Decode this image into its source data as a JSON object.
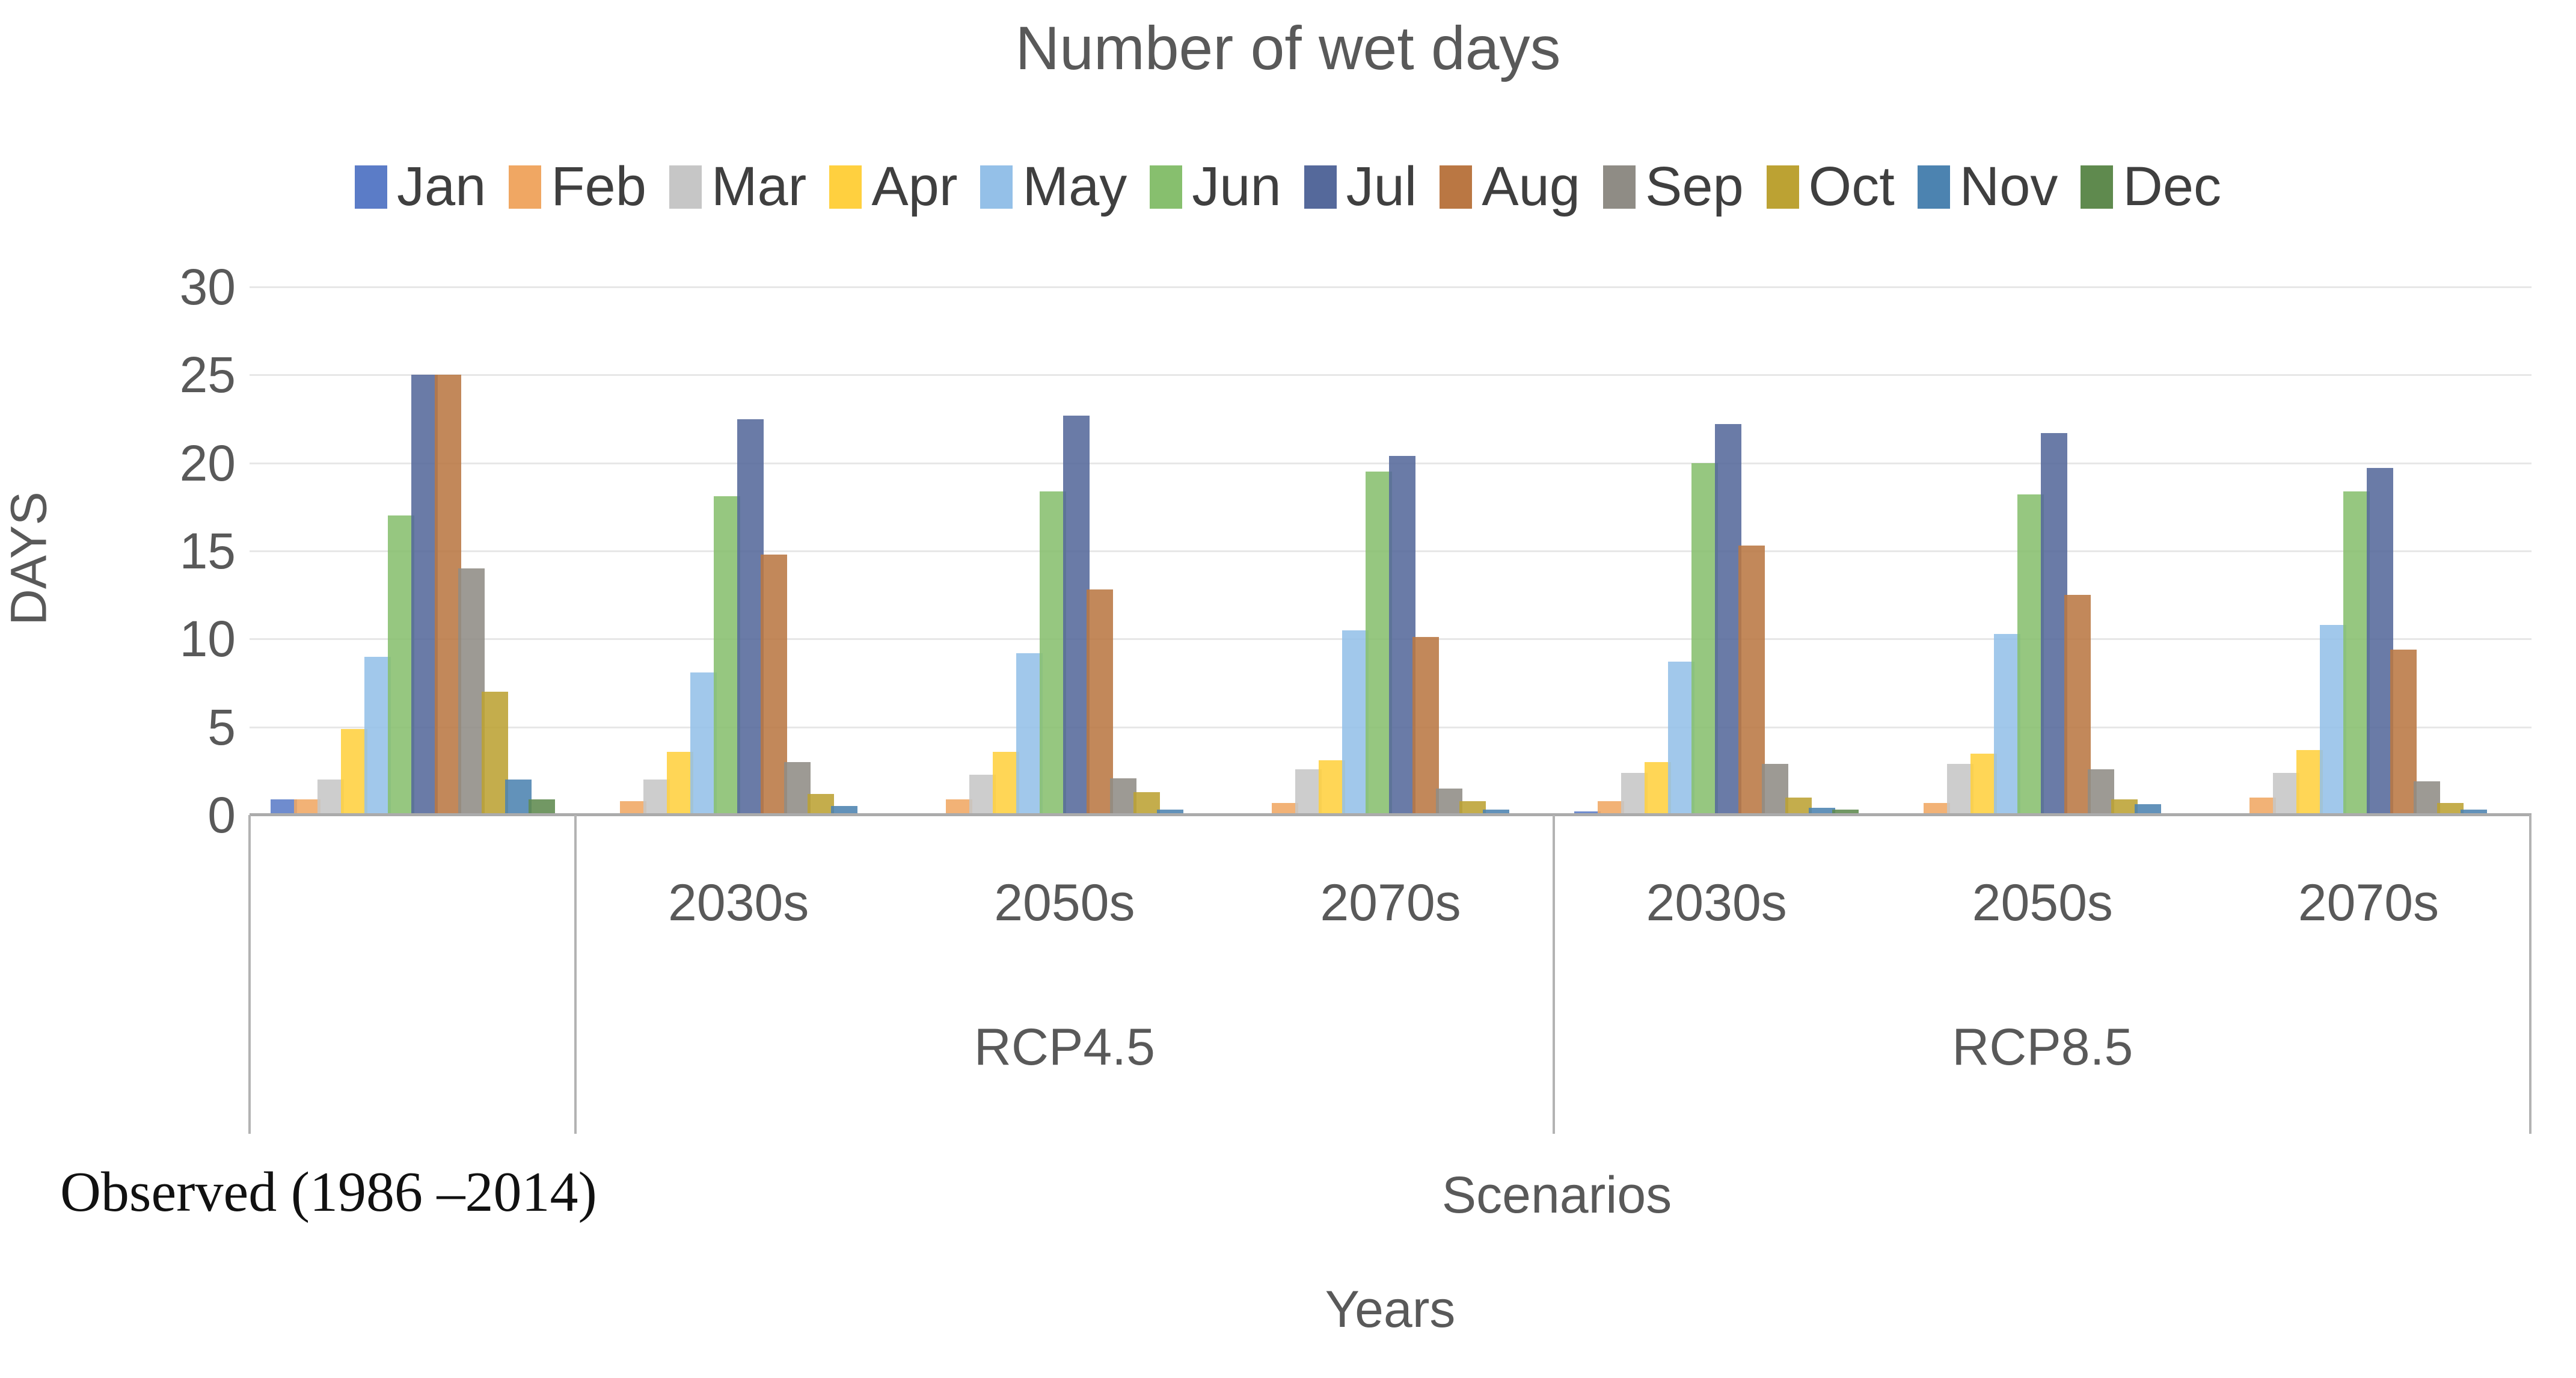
{
  "title": "Number of wet days",
  "chart_data": {
    "type": "bar",
    "title": "Number of wet days",
    "ylabel": "DAYS",
    "xlabel": "Years",
    "scenario_axis_label": "Scenarios",
    "ylim": [
      0,
      30
    ],
    "y_ticks": [
      0,
      5,
      10,
      15,
      20,
      25,
      30
    ],
    "grid": true,
    "legend_position": "top",
    "group_year_labels": [
      "",
      "2030s",
      "2050s",
      "2070s",
      "2030s",
      "2050s",
      "2070s"
    ],
    "scenario_group_labels": {
      "observed": "Observed (1986 –2014)",
      "rcp45": "RCP4.5",
      "rcp85": "RCP8.5"
    },
    "categories": [
      "Observed (1986-2014)",
      "RCP4.5 2030s",
      "RCP4.5 2050s",
      "RCP4.5 2070s",
      "RCP8.5 2030s",
      "RCP8.5 2050s",
      "RCP8.5 2070s"
    ],
    "series": [
      {
        "name": "Jan",
        "color": "#5b7cc7",
        "values": [
          0.9,
          0.1,
          0.1,
          0.1,
          0.2,
          0.1,
          0.1
        ]
      },
      {
        "name": "Feb",
        "color": "#f0a763",
        "values": [
          0.9,
          0.8,
          0.9,
          0.7,
          0.8,
          0.7,
          1.0
        ]
      },
      {
        "name": "Mar",
        "color": "#c6c6c6",
        "values": [
          2.0,
          2.0,
          2.3,
          2.6,
          2.4,
          2.9,
          2.4
        ]
      },
      {
        "name": "Apr",
        "color": "#ffd03f",
        "values": [
          4.9,
          3.6,
          3.6,
          3.1,
          3.0,
          3.5,
          3.7
        ]
      },
      {
        "name": "May",
        "color": "#94c0e8",
        "values": [
          9.0,
          8.1,
          9.2,
          10.5,
          8.7,
          10.3,
          10.8
        ]
      },
      {
        "name": "Jun",
        "color": "#87bf6e",
        "values": [
          17.0,
          18.1,
          18.4,
          19.5,
          20.0,
          18.2,
          18.4
        ]
      },
      {
        "name": "Jul",
        "color": "#55699b",
        "values": [
          25.0,
          22.5,
          22.7,
          20.4,
          22.2,
          21.7,
          19.7
        ]
      },
      {
        "name": "Aug",
        "color": "#ba7743",
        "values": [
          25.0,
          14.8,
          12.8,
          10.1,
          15.3,
          12.5,
          9.4
        ]
      },
      {
        "name": "Sep",
        "color": "#8f8c85",
        "values": [
          14.0,
          3.0,
          2.1,
          1.5,
          2.9,
          2.6,
          1.9
        ]
      },
      {
        "name": "Oct",
        "color": "#bca233",
        "values": [
          7.0,
          1.2,
          1.3,
          0.8,
          1.0,
          0.9,
          0.7
        ]
      },
      {
        "name": "Nov",
        "color": "#4c83b0",
        "values": [
          2.0,
          0.5,
          0.3,
          0.3,
          0.4,
          0.6,
          0.3
        ]
      },
      {
        "name": "Dec",
        "color": "#5f8a4e",
        "values": [
          0.9,
          0.1,
          0.1,
          0.1,
          0.3,
          0.1,
          0.1
        ]
      }
    ]
  },
  "axis_labels": {
    "observed": "Observed (1986 –2014)",
    "rcp45": "RCP4.5",
    "rcp85": "RCP8.5",
    "scenarios": "Scenarios",
    "years": "Years",
    "days": "DAYS"
  }
}
